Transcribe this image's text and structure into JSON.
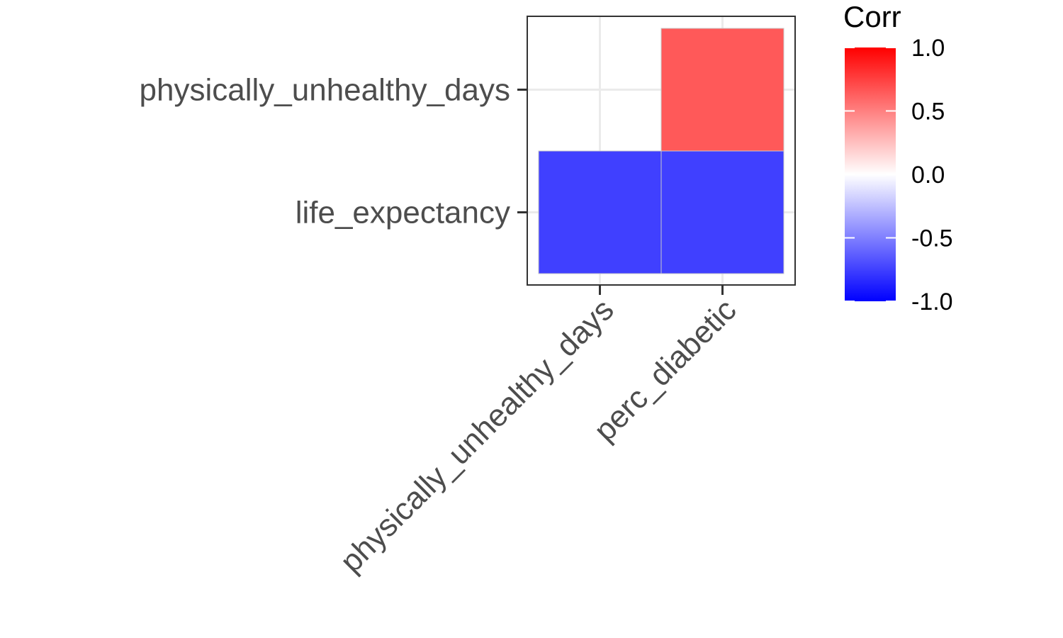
{
  "chart_data": {
    "type": "heatmap",
    "x_categories": [
      "physically_unhealthy_days",
      "perc_diabetic"
    ],
    "y_categories": [
      "physically_unhealthy_days",
      "life_expectancy"
    ],
    "cells": [
      {
        "x": "perc_diabetic",
        "y": "physically_unhealthy_days",
        "value": 0.65
      },
      {
        "x": "physically_unhealthy_days",
        "y": "life_expectancy",
        "value": -0.75
      },
      {
        "x": "perc_diabetic",
        "y": "life_expectancy",
        "value": -0.75
      }
    ],
    "legend": {
      "title": "Corr",
      "position": "right",
      "range": [
        -1,
        1
      ],
      "ticks": [
        "1.0",
        "0.5",
        "0.0",
        "-0.5",
        "-1.0"
      ],
      "tick_values": [
        1,
        0.5,
        0,
        -0.5,
        -1
      ],
      "colors": {
        "low": "#0000ff",
        "mid": "#ffffff",
        "high": "#ff0000"
      }
    },
    "grid": true
  }
}
